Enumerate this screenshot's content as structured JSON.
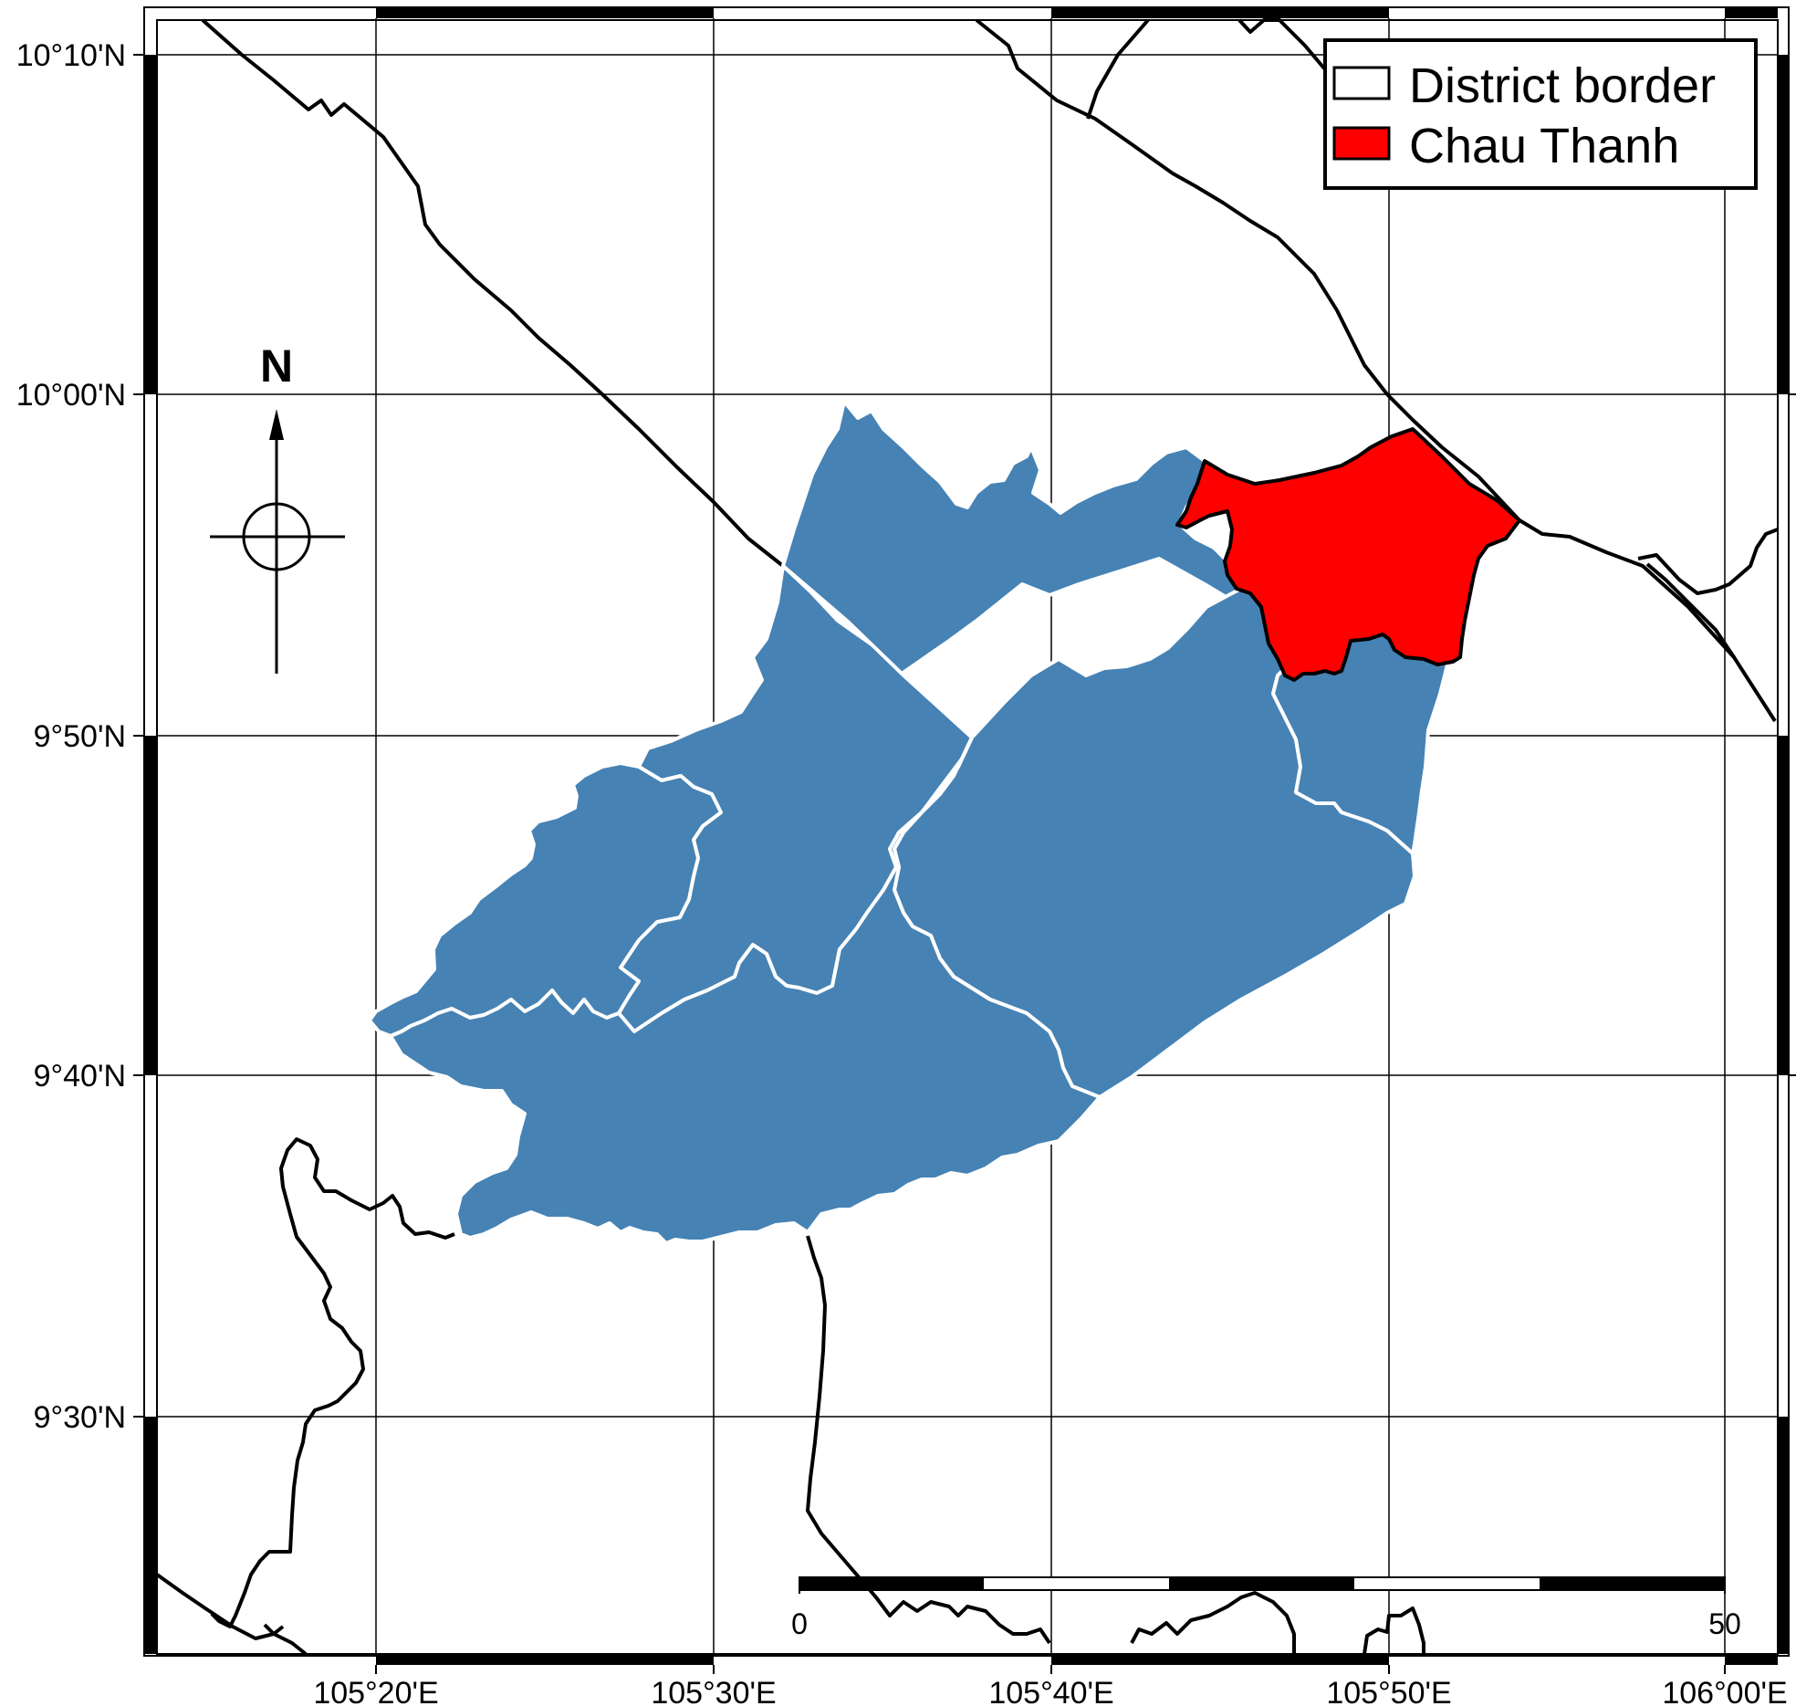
{
  "map": {
    "title": "",
    "graticule": {
      "longitude_labels": [
        "105°20'E",
        "105°30'E",
        "105°40'E",
        "105°50'E",
        "106°00'E"
      ],
      "latitude_labels": [
        "10°10'N",
        "10°00'N",
        "9°50'N",
        "9°40'N",
        "9°30'N"
      ]
    },
    "legend": {
      "position": "top-right",
      "items": [
        {
          "label": "District border",
          "fill": "#ffffff",
          "stroke": "#000000"
        },
        {
          "label": "Chau Thanh",
          "fill": "#ff0000",
          "stroke": "#000000"
        }
      ]
    },
    "north_arrow": {
      "label": "N"
    },
    "scale_bar": {
      "start_label": "0",
      "end_label": "50"
    },
    "colors": {
      "province_fill": "#4682b4",
      "district_outline": "#ffffff",
      "highlight_fill": "#ff0000",
      "border_line": "#000000",
      "background": "#ffffff"
    }
  }
}
